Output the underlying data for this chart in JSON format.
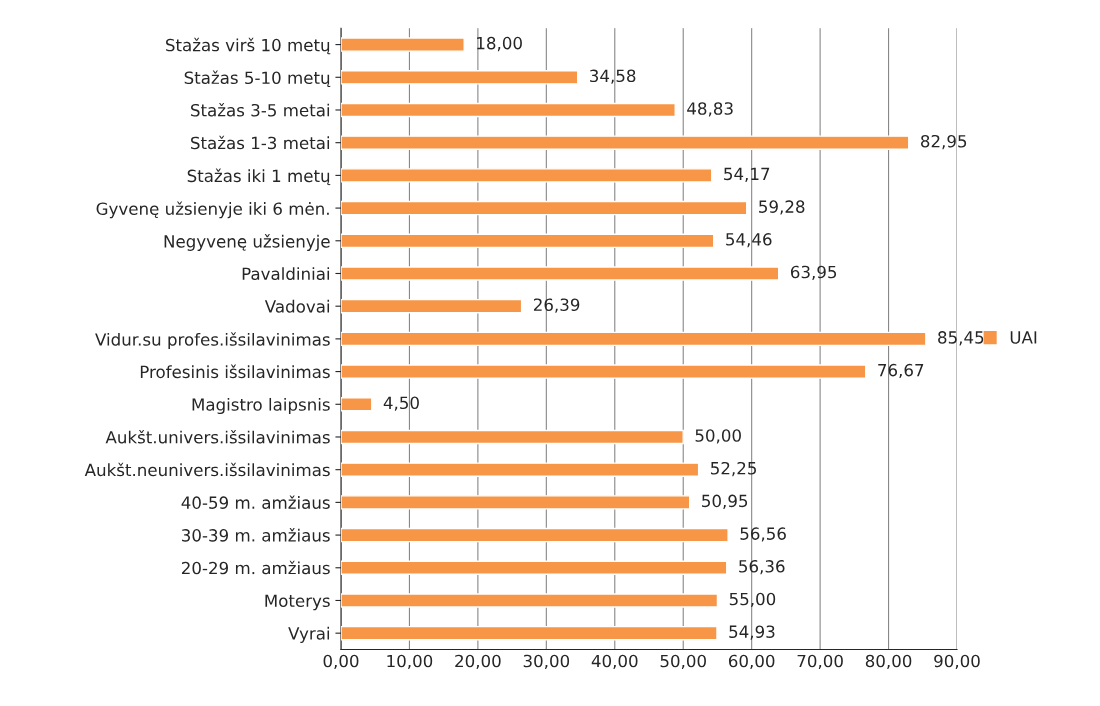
{
  "chart_data": {
    "type": "bar",
    "orientation": "horizontal",
    "categories": [
      "Stažas virš 10 metų",
      "Stažas 5-10 metų",
      "Stažas 3-5 metai",
      "Stažas 1-3 metai",
      "Stažas iki 1 metų",
      "Gyvenę užsienyje iki 6 mėn.",
      "Negyvenę užsienyje",
      "Pavaldiniai",
      "Vadovai",
      "Vidur.su profes.išsilavinimas",
      "Profesinis išsilavinimas",
      "Magistro laipsnis",
      "Aukšt.univers.išsilavinimas",
      "Aukšt.neunivers.išsilavinimas",
      "40-59 m. amžiaus",
      "30-39 m. amžiaus",
      "20-29 m. amžiaus",
      "Moterys",
      "Vyrai"
    ],
    "series": [
      {
        "name": "UAI",
        "color": "#f79646",
        "values": [
          18.0,
          34.58,
          48.83,
          82.95,
          54.17,
          59.28,
          54.46,
          63.95,
          26.39,
          85.45,
          76.67,
          4.5,
          50.0,
          52.25,
          50.95,
          56.56,
          56.36,
          55.0,
          54.93
        ],
        "value_labels": [
          "18,00",
          "34,58",
          "48,83",
          "82,95",
          "54,17",
          "59,28",
          "54,46",
          "63,95",
          "26,39",
          "85,45",
          "76,67",
          "4,50",
          "50,00",
          "52,25",
          "50,95",
          "56,56",
          "56,36",
          "55,00",
          "54,93"
        ]
      }
    ],
    "xlim": [
      0,
      90
    ],
    "xticks": [
      {
        "value": 0,
        "label": "0,00"
      },
      {
        "value": 10,
        "label": "10,00"
      },
      {
        "value": 20,
        "label": "20,00"
      },
      {
        "value": 30,
        "label": "30,00"
      },
      {
        "value": 40,
        "label": "40,00"
      },
      {
        "value": 50,
        "label": "50,00"
      },
      {
        "value": 60,
        "label": "60,00"
      },
      {
        "value": 70,
        "label": "70,00"
      },
      {
        "value": 80,
        "label": "80,00"
      },
      {
        "value": 90,
        "label": "90,00"
      }
    ],
    "grid": "x",
    "legend": "right"
  }
}
